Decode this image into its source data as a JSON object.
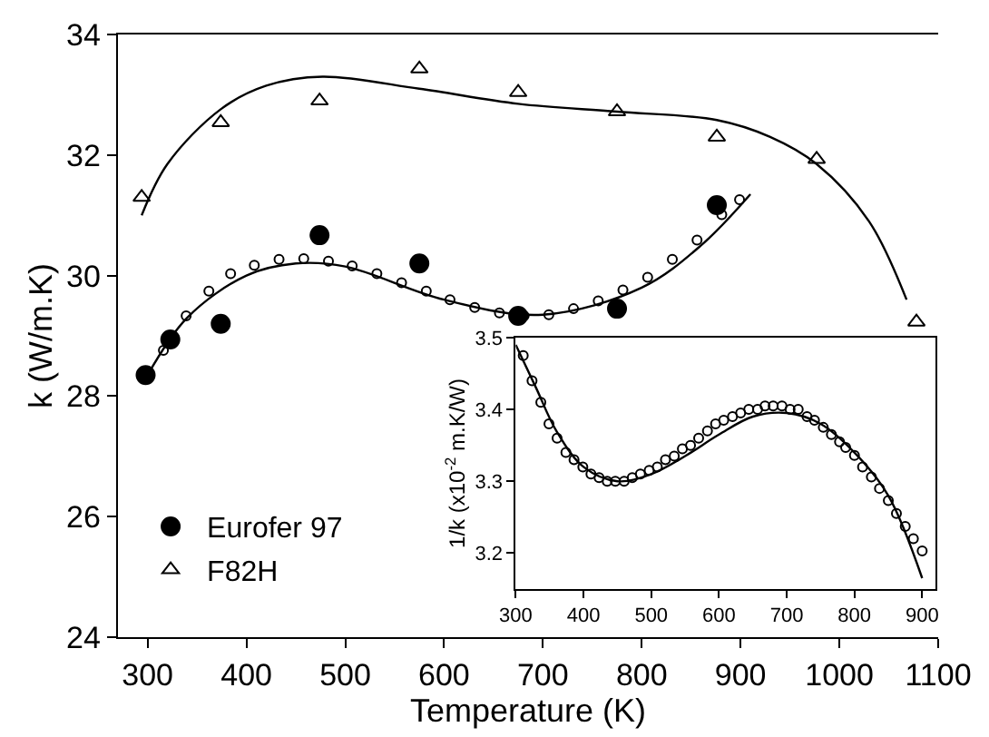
{
  "chart_data": [
    {
      "type": "scatter",
      "xlabel": "Temperature (K)",
      "ylabel": "k (W/m.K)",
      "xlim": [
        270,
        1100
      ],
      "ylim": [
        24,
        34
      ],
      "xticks": [
        300,
        400,
        500,
        600,
        700,
        800,
        900,
        1000,
        1100
      ],
      "yticks": [
        24,
        26,
        28,
        30,
        32,
        34
      ],
      "legend": "bottom left",
      "series": [
        {
          "name": "Eurofer 97",
          "marker": "circle",
          "color": "#000000",
          "x": [
            298,
            323,
            374,
            474,
            575,
            675,
            775,
            876
          ],
          "values": [
            28.35,
            28.94,
            29.2,
            30.67,
            30.2,
            29.33,
            29.45,
            31.17
          ]
        },
        {
          "name": "F82H",
          "marker": "triangle",
          "color": "#000000",
          "x": [
            294,
            374,
            474,
            575,
            675,
            775,
            876,
            977,
            1078
          ],
          "values": [
            31.3,
            32.54,
            32.9,
            33.43,
            33.04,
            32.72,
            32.3,
            31.93,
            29.23
          ]
        },
        {
          "marker": "open circle",
          "color": "#000000",
          "x": [
            316,
            339,
            362,
            384,
            408,
            433,
            458,
            483,
            507,
            532,
            557,
            582,
            606,
            631,
            656,
            681,
            706,
            731,
            756,
            781,
            806,
            831,
            856,
            881,
            899
          ],
          "values": [
            28.76,
            29.33,
            29.74,
            30.03,
            30.17,
            30.27,
            30.28,
            30.24,
            30.16,
            30.03,
            29.88,
            29.74,
            29.6,
            29.47,
            29.38,
            29.33,
            29.35,
            29.45,
            29.58,
            29.76,
            29.97,
            30.27,
            30.59,
            31.01,
            31.26
          ]
        },
        {
          "type": "line",
          "line_style": "solid",
          "color": "#000000",
          "x": [
            300,
            340,
            400,
            450,
            500,
            600,
            700,
            800,
            860,
            910
          ],
          "values": [
            28.35,
            29.3,
            30.0,
            30.2,
            30.15,
            29.6,
            29.35,
            29.8,
            30.5,
            31.35
          ]
        },
        {
          "type": "line",
          "line_style": "solid",
          "color": "#000000",
          "x": [
            294,
            320,
            374,
            420,
            477,
            575,
            675,
            775,
            876,
            930,
            977,
            1030,
            1068
          ],
          "values": [
            31.0,
            31.85,
            32.76,
            33.15,
            33.3,
            33.1,
            32.85,
            32.72,
            32.58,
            32.3,
            31.85,
            30.9,
            29.6
          ]
        }
      ]
    },
    {
      "type": "scatter",
      "ylabel": "1/k (x10$^{-2}$ m.K/W)",
      "xlim": [
        300,
        920
      ],
      "ylim": [
        3.15,
        3.5
      ],
      "xticks": [
        300,
        400,
        500,
        600,
        700,
        800,
        900
      ],
      "yticks": [
        3.2,
        3.3,
        3.4,
        3.5
      ],
      "series": [
        {
          "marker": "open circle",
          "color": "#000000",
          "x": [
            311,
            324,
            337,
            349,
            361,
            374,
            386,
            399,
            411,
            423,
            435,
            447,
            460,
            472,
            484,
            497,
            509,
            521,
            534,
            546,
            558,
            570,
            583,
            595,
            607,
            620,
            632,
            644,
            657,
            668,
            680,
            693,
            705,
            717,
            730,
            741,
            754,
            766,
            778,
            787,
            800,
            812,
            825,
            837,
            850,
            862,
            875,
            887,
            900
          ],
          "values": [
            3.475,
            3.44,
            3.41,
            3.38,
            3.36,
            3.34,
            3.33,
            3.32,
            3.31,
            3.305,
            3.3,
            3.3,
            3.3,
            3.305,
            3.31,
            3.315,
            3.32,
            3.33,
            3.335,
            3.345,
            3.35,
            3.36,
            3.37,
            3.38,
            3.385,
            3.39,
            3.395,
            3.4,
            3.4,
            3.405,
            3.405,
            3.405,
            3.4,
            3.4,
            3.39,
            3.385,
            3.375,
            3.365,
            3.355,
            3.347,
            3.336,
            3.32,
            3.306,
            3.29,
            3.273,
            3.255,
            3.237,
            3.22,
            3.203
          ]
        },
        {
          "type": "line",
          "line_style": "solid",
          "color": "#000000",
          "x": [
            300,
            330,
            360,
            400,
            450,
            500,
            550,
            600,
            650,
            700,
            750,
            800,
            850,
            900
          ],
          "values": [
            3.49,
            3.43,
            3.37,
            3.32,
            3.3,
            3.31,
            3.335,
            3.365,
            3.39,
            3.395,
            3.38,
            3.34,
            3.28,
            3.165
          ]
        }
      ]
    }
  ]
}
